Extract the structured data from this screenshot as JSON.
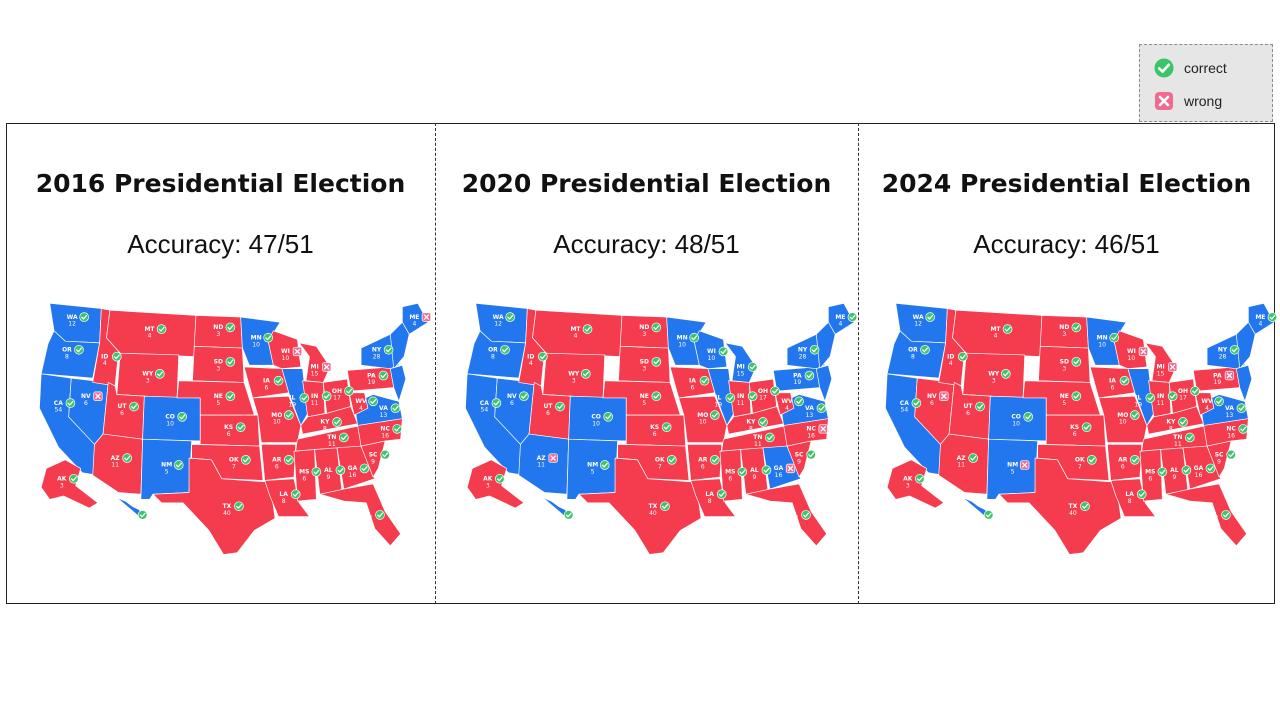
{
  "legend": {
    "correct_label": "correct",
    "wrong_label": "wrong",
    "correct_color": "#3cc46a",
    "wrong_color": "#f06b8f"
  },
  "colors": {
    "red": "#f43c4e",
    "blue": "#2277ee"
  },
  "panels": [
    {
      "title": "2016 Presidential Election",
      "accuracy": "Accuracy: 47/51",
      "states": [
        {
          "abbr": "WA",
          "ev": "12",
          "party": "D",
          "mark": "correct"
        },
        {
          "abbr": "OR",
          "ev": "8",
          "party": "D",
          "mark": "correct"
        },
        {
          "abbr": "CA",
          "ev": "54",
          "party": "D",
          "mark": "correct"
        },
        {
          "abbr": "NV",
          "ev": "6",
          "party": "D",
          "mark": "wrong"
        },
        {
          "abbr": "ID",
          "ev": "4",
          "party": "R",
          "mark": "correct"
        },
        {
          "abbr": "MT",
          "ev": "4",
          "party": "R",
          "mark": "correct"
        },
        {
          "abbr": "WY",
          "ev": "3",
          "party": "R",
          "mark": "correct"
        },
        {
          "abbr": "UT",
          "ev": "6",
          "party": "R",
          "mark": "correct"
        },
        {
          "abbr": "AZ",
          "ev": "11",
          "party": "R",
          "mark": "correct"
        },
        {
          "abbr": "CO",
          "ev": "10",
          "party": "D",
          "mark": "correct"
        },
        {
          "abbr": "NM",
          "ev": "5",
          "party": "D",
          "mark": "correct"
        },
        {
          "abbr": "ND",
          "ev": "3",
          "party": "R",
          "mark": "correct"
        },
        {
          "abbr": "SD",
          "ev": "3",
          "party": "R",
          "mark": "correct"
        },
        {
          "abbr": "NE",
          "ev": "5",
          "party": "R",
          "mark": "correct"
        },
        {
          "abbr": "KS",
          "ev": "6",
          "party": "R",
          "mark": "correct"
        },
        {
          "abbr": "OK",
          "ev": "7",
          "party": "R",
          "mark": "correct"
        },
        {
          "abbr": "TX",
          "ev": "40",
          "party": "R",
          "mark": "correct"
        },
        {
          "abbr": "MN",
          "ev": "10",
          "party": "D",
          "mark": "correct"
        },
        {
          "abbr": "IA",
          "ev": "6",
          "party": "R",
          "mark": "correct"
        },
        {
          "abbr": "MO",
          "ev": "10",
          "party": "R",
          "mark": "correct"
        },
        {
          "abbr": "AR",
          "ev": "6",
          "party": "R",
          "mark": "correct"
        },
        {
          "abbr": "LA",
          "ev": "8",
          "party": "R",
          "mark": "correct"
        },
        {
          "abbr": "WI",
          "ev": "10",
          "party": "R",
          "mark": "wrong"
        },
        {
          "abbr": "IL",
          "ev": "19",
          "party": "D",
          "mark": "correct"
        },
        {
          "abbr": "MI",
          "ev": "15",
          "party": "R",
          "mark": "wrong"
        },
        {
          "abbr": "IN",
          "ev": "11",
          "party": "R",
          "mark": "correct"
        },
        {
          "abbr": "OH",
          "ev": "17",
          "party": "R",
          "mark": "correct"
        },
        {
          "abbr": "KY",
          "ev": "8",
          "party": "R",
          "mark": "correct"
        },
        {
          "abbr": "TN",
          "ev": "11",
          "party": "R",
          "mark": "correct"
        },
        {
          "abbr": "MS",
          "ev": "6",
          "party": "R",
          "mark": "correct"
        },
        {
          "abbr": "AL",
          "ev": "9",
          "party": "R",
          "mark": "correct"
        },
        {
          "abbr": "GA",
          "ev": "16",
          "party": "R",
          "mark": "correct"
        },
        {
          "abbr": "FL",
          "ev": "30",
          "party": "R",
          "mark": "correct"
        },
        {
          "abbr": "SC",
          "ev": "9",
          "party": "R",
          "mark": "correct"
        },
        {
          "abbr": "NC",
          "ev": "16",
          "party": "R",
          "mark": "correct"
        },
        {
          "abbr": "VA",
          "ev": "13",
          "party": "D",
          "mark": "correct"
        },
        {
          "abbr": "WV",
          "ev": "4",
          "party": "R",
          "mark": "correct"
        },
        {
          "abbr": "PA",
          "ev": "19",
          "party": "R",
          "mark": "correct"
        },
        {
          "abbr": "NY",
          "ev": "28",
          "party": "D",
          "mark": "correct"
        },
        {
          "abbr": "ME",
          "ev": "4",
          "party": "D",
          "mark": "wrong"
        },
        {
          "abbr": "AK",
          "ev": "3",
          "party": "R",
          "mark": "correct"
        },
        {
          "abbr": "HI",
          "ev": "",
          "party": "D",
          "mark": "correct"
        }
      ]
    },
    {
      "title": "2020 Presidential Election",
      "accuracy": "Accuracy: 48/51",
      "states": [
        {
          "abbr": "WA",
          "ev": "12",
          "party": "D",
          "mark": "correct"
        },
        {
          "abbr": "OR",
          "ev": "8",
          "party": "D",
          "mark": "correct"
        },
        {
          "abbr": "CA",
          "ev": "54",
          "party": "D",
          "mark": "correct"
        },
        {
          "abbr": "NV",
          "ev": "6",
          "party": "D",
          "mark": "correct"
        },
        {
          "abbr": "ID",
          "ev": "4",
          "party": "R",
          "mark": "correct"
        },
        {
          "abbr": "MT",
          "ev": "4",
          "party": "R",
          "mark": "correct"
        },
        {
          "abbr": "WY",
          "ev": "3",
          "party": "R",
          "mark": "correct"
        },
        {
          "abbr": "UT",
          "ev": "6",
          "party": "R",
          "mark": "correct"
        },
        {
          "abbr": "AZ",
          "ev": "11",
          "party": "D",
          "mark": "wrong"
        },
        {
          "abbr": "CO",
          "ev": "10",
          "party": "D",
          "mark": "correct"
        },
        {
          "abbr": "NM",
          "ev": "5",
          "party": "D",
          "mark": "correct"
        },
        {
          "abbr": "ND",
          "ev": "3",
          "party": "R",
          "mark": "correct"
        },
        {
          "abbr": "SD",
          "ev": "3",
          "party": "R",
          "mark": "correct"
        },
        {
          "abbr": "NE",
          "ev": "5",
          "party": "R",
          "mark": "correct"
        },
        {
          "abbr": "KS",
          "ev": "6",
          "party": "R",
          "mark": "correct"
        },
        {
          "abbr": "OK",
          "ev": "7",
          "party": "R",
          "mark": "correct"
        },
        {
          "abbr": "TX",
          "ev": "40",
          "party": "R",
          "mark": "correct"
        },
        {
          "abbr": "MN",
          "ev": "10",
          "party": "D",
          "mark": "correct"
        },
        {
          "abbr": "IA",
          "ev": "6",
          "party": "R",
          "mark": "correct"
        },
        {
          "abbr": "MO",
          "ev": "10",
          "party": "R",
          "mark": "correct"
        },
        {
          "abbr": "AR",
          "ev": "6",
          "party": "R",
          "mark": "correct"
        },
        {
          "abbr": "LA",
          "ev": "8",
          "party": "R",
          "mark": "correct"
        },
        {
          "abbr": "WI",
          "ev": "10",
          "party": "D",
          "mark": "correct"
        },
        {
          "abbr": "IL",
          "ev": "19",
          "party": "D",
          "mark": "correct"
        },
        {
          "abbr": "MI",
          "ev": "15",
          "party": "D",
          "mark": "correct"
        },
        {
          "abbr": "IN",
          "ev": "11",
          "party": "R",
          "mark": "correct"
        },
        {
          "abbr": "OH",
          "ev": "17",
          "party": "R",
          "mark": "correct"
        },
        {
          "abbr": "KY",
          "ev": "8",
          "party": "R",
          "mark": "correct"
        },
        {
          "abbr": "TN",
          "ev": "11",
          "party": "R",
          "mark": "correct"
        },
        {
          "abbr": "MS",
          "ev": "6",
          "party": "R",
          "mark": "correct"
        },
        {
          "abbr": "AL",
          "ev": "9",
          "party": "R",
          "mark": "correct"
        },
        {
          "abbr": "GA",
          "ev": "16",
          "party": "D",
          "mark": "wrong"
        },
        {
          "abbr": "FL",
          "ev": "30",
          "party": "R",
          "mark": "correct"
        },
        {
          "abbr": "SC",
          "ev": "9",
          "party": "R",
          "mark": "correct"
        },
        {
          "abbr": "NC",
          "ev": "16",
          "party": "R",
          "mark": "wrong"
        },
        {
          "abbr": "VA",
          "ev": "13",
          "party": "D",
          "mark": "correct"
        },
        {
          "abbr": "WV",
          "ev": "4",
          "party": "R",
          "mark": "correct"
        },
        {
          "abbr": "PA",
          "ev": "19",
          "party": "D",
          "mark": "correct"
        },
        {
          "abbr": "NY",
          "ev": "28",
          "party": "D",
          "mark": "correct"
        },
        {
          "abbr": "ME",
          "ev": "4",
          "party": "D",
          "mark": "correct"
        },
        {
          "abbr": "AK",
          "ev": "3",
          "party": "R",
          "mark": "correct"
        },
        {
          "abbr": "HI",
          "ev": "",
          "party": "D",
          "mark": "correct"
        }
      ]
    },
    {
      "title": "2024 Presidential Election",
      "accuracy": "Accuracy: 46/51",
      "states": [
        {
          "abbr": "WA",
          "ev": "12",
          "party": "D",
          "mark": "correct"
        },
        {
          "abbr": "OR",
          "ev": "8",
          "party": "D",
          "mark": "correct"
        },
        {
          "abbr": "CA",
          "ev": "54",
          "party": "D",
          "mark": "correct"
        },
        {
          "abbr": "NV",
          "ev": "6",
          "party": "R",
          "mark": "wrong"
        },
        {
          "abbr": "ID",
          "ev": "4",
          "party": "R",
          "mark": "correct"
        },
        {
          "abbr": "MT",
          "ev": "4",
          "party": "R",
          "mark": "correct"
        },
        {
          "abbr": "WY",
          "ev": "3",
          "party": "R",
          "mark": "correct"
        },
        {
          "abbr": "UT",
          "ev": "6",
          "party": "R",
          "mark": "correct"
        },
        {
          "abbr": "AZ",
          "ev": "11",
          "party": "R",
          "mark": "correct"
        },
        {
          "abbr": "CO",
          "ev": "10",
          "party": "D",
          "mark": "correct"
        },
        {
          "abbr": "NM",
          "ev": "5",
          "party": "D",
          "mark": "wrong"
        },
        {
          "abbr": "ND",
          "ev": "3",
          "party": "R",
          "mark": "correct"
        },
        {
          "abbr": "SD",
          "ev": "3",
          "party": "R",
          "mark": "correct"
        },
        {
          "abbr": "NE",
          "ev": "5",
          "party": "R",
          "mark": "correct"
        },
        {
          "abbr": "KS",
          "ev": "6",
          "party": "R",
          "mark": "correct"
        },
        {
          "abbr": "OK",
          "ev": "7",
          "party": "R",
          "mark": "correct"
        },
        {
          "abbr": "TX",
          "ev": "40",
          "party": "R",
          "mark": "correct"
        },
        {
          "abbr": "MN",
          "ev": "10",
          "party": "D",
          "mark": "correct"
        },
        {
          "abbr": "IA",
          "ev": "6",
          "party": "R",
          "mark": "correct"
        },
        {
          "abbr": "MO",
          "ev": "10",
          "party": "R",
          "mark": "correct"
        },
        {
          "abbr": "AR",
          "ev": "6",
          "party": "R",
          "mark": "correct"
        },
        {
          "abbr": "LA",
          "ev": "8",
          "party": "R",
          "mark": "correct"
        },
        {
          "abbr": "WI",
          "ev": "10",
          "party": "R",
          "mark": "wrong"
        },
        {
          "abbr": "IL",
          "ev": "19",
          "party": "D",
          "mark": "correct"
        },
        {
          "abbr": "MI",
          "ev": "15",
          "party": "R",
          "mark": "wrong"
        },
        {
          "abbr": "IN",
          "ev": "11",
          "party": "R",
          "mark": "correct"
        },
        {
          "abbr": "OH",
          "ev": "17",
          "party": "R",
          "mark": "correct"
        },
        {
          "abbr": "KY",
          "ev": "8",
          "party": "R",
          "mark": "correct"
        },
        {
          "abbr": "TN",
          "ev": "11",
          "party": "R",
          "mark": "correct"
        },
        {
          "abbr": "MS",
          "ev": "6",
          "party": "R",
          "mark": "correct"
        },
        {
          "abbr": "AL",
          "ev": "9",
          "party": "R",
          "mark": "correct"
        },
        {
          "abbr": "GA",
          "ev": "16",
          "party": "R",
          "mark": "correct"
        },
        {
          "abbr": "FL",
          "ev": "30",
          "party": "R",
          "mark": "correct"
        },
        {
          "abbr": "SC",
          "ev": "9",
          "party": "R",
          "mark": "correct"
        },
        {
          "abbr": "NC",
          "ev": "16",
          "party": "R",
          "mark": "correct"
        },
        {
          "abbr": "VA",
          "ev": "13",
          "party": "D",
          "mark": "correct"
        },
        {
          "abbr": "WV",
          "ev": "4",
          "party": "R",
          "mark": "correct"
        },
        {
          "abbr": "PA",
          "ev": "19",
          "party": "R",
          "mark": "wrong"
        },
        {
          "abbr": "NY",
          "ev": "28",
          "party": "D",
          "mark": "correct"
        },
        {
          "abbr": "ME",
          "ev": "4",
          "party": "D",
          "mark": "correct"
        },
        {
          "abbr": "AK",
          "ev": "3",
          "party": "R",
          "mark": "correct"
        },
        {
          "abbr": "HI",
          "ev": "",
          "party": "D",
          "mark": "correct"
        }
      ]
    }
  ]
}
